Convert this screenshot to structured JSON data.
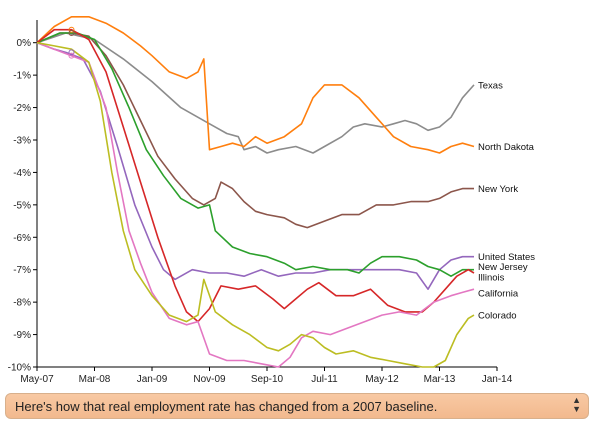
{
  "chart_data": {
    "type": "line",
    "title": "",
    "xlabel": "",
    "ylabel": "",
    "ylim": [
      -10,
      0.7
    ],
    "x_ticks": [
      "May-07",
      "Mar-08",
      "Jan-09",
      "Nov-09",
      "Sep-10",
      "Jul-11",
      "May-12",
      "Mar-13",
      "Jan-14"
    ],
    "y_ticks": [
      {
        "value": 0,
        "label": "0%"
      },
      {
        "value": -1,
        "label": "-1%"
      },
      {
        "value": -2,
        "label": "-2%"
      },
      {
        "value": -3,
        "label": "-3%"
      },
      {
        "value": -4,
        "label": "-4%"
      },
      {
        "value": -5,
        "label": "-5%"
      },
      {
        "value": -6,
        "label": "-6%"
      },
      {
        "value": -7,
        "label": "-7%"
      },
      {
        "value": -8,
        "label": "-8%"
      },
      {
        "value": -9,
        "label": "-9%"
      },
      {
        "value": -10,
        "label": "-10%"
      }
    ],
    "x_note": "x values are months since May-07",
    "series": [
      {
        "name": "Texas",
        "color": "#8c8c8c",
        "points": [
          [
            0,
            0
          ],
          [
            5,
            0.3
          ],
          [
            10,
            0.1
          ],
          [
            15,
            -0.5
          ],
          [
            20,
            -1.2
          ],
          [
            25,
            -2.0
          ],
          [
            30,
            -2.5
          ],
          [
            33,
            -2.8
          ],
          [
            35,
            -2.9
          ],
          [
            36,
            -3.3
          ],
          [
            38,
            -3.2
          ],
          [
            40,
            -3.4
          ],
          [
            42,
            -3.3
          ],
          [
            45,
            -3.2
          ],
          [
            48,
            -3.4
          ],
          [
            50,
            -3.2
          ],
          [
            53,
            -2.9
          ],
          [
            55,
            -2.6
          ],
          [
            57,
            -2.5
          ],
          [
            60,
            -2.6
          ],
          [
            62,
            -2.5
          ],
          [
            64,
            -2.4
          ],
          [
            66,
            -2.5
          ],
          [
            68,
            -2.7
          ],
          [
            70,
            -2.6
          ],
          [
            72,
            -2.3
          ],
          [
            74,
            -1.7
          ],
          [
            76,
            -1.3
          ]
        ]
      },
      {
        "name": "North Dakota",
        "color": "#ff7f0e",
        "points": [
          [
            0,
            0
          ],
          [
            3,
            0.5
          ],
          [
            6,
            0.8
          ],
          [
            9,
            0.8
          ],
          [
            12,
            0.6
          ],
          [
            15,
            0.3
          ],
          [
            18,
            -0.1
          ],
          [
            20,
            -0.4
          ],
          [
            23,
            -0.9
          ],
          [
            26,
            -1.1
          ],
          [
            28,
            -0.9
          ],
          [
            29,
            -0.5
          ],
          [
            30,
            -3.3
          ],
          [
            32,
            -3.2
          ],
          [
            34,
            -3.1
          ],
          [
            36,
            -3.2
          ],
          [
            38,
            -2.9
          ],
          [
            40,
            -3.1
          ],
          [
            43,
            -2.9
          ],
          [
            46,
            -2.5
          ],
          [
            48,
            -1.7
          ],
          [
            50,
            -1.3
          ],
          [
            53,
            -1.3
          ],
          [
            56,
            -1.7
          ],
          [
            59,
            -2.3
          ],
          [
            62,
            -2.9
          ],
          [
            65,
            -3.2
          ],
          [
            68,
            -3.3
          ],
          [
            70,
            -3.4
          ],
          [
            72,
            -3.2
          ],
          [
            74,
            -3.1
          ],
          [
            76,
            -3.2
          ]
        ]
      },
      {
        "name": "New York",
        "color": "#8c564b",
        "points": [
          [
            0,
            0
          ],
          [
            4,
            0.3
          ],
          [
            6,
            0.3
          ],
          [
            9,
            0.2
          ],
          [
            12,
            -0.4
          ],
          [
            15,
            -1.3
          ],
          [
            18,
            -2.4
          ],
          [
            21,
            -3.5
          ],
          [
            24,
            -4.2
          ],
          [
            27,
            -4.8
          ],
          [
            29,
            -5.0
          ],
          [
            31,
            -4.8
          ],
          [
            32,
            -4.3
          ],
          [
            34,
            -4.5
          ],
          [
            36,
            -4.9
          ],
          [
            38,
            -5.2
          ],
          [
            40,
            -5.3
          ],
          [
            43,
            -5.4
          ],
          [
            45,
            -5.6
          ],
          [
            47,
            -5.7
          ],
          [
            50,
            -5.5
          ],
          [
            53,
            -5.3
          ],
          [
            56,
            -5.3
          ],
          [
            59,
            -5.0
          ],
          [
            62,
            -5.0
          ],
          [
            65,
            -4.9
          ],
          [
            68,
            -4.9
          ],
          [
            70,
            -4.8
          ],
          [
            72,
            -4.6
          ],
          [
            74,
            -4.5
          ],
          [
            76,
            -4.5
          ]
        ]
      },
      {
        "name": "United States",
        "color": "#9467bd",
        "points": [
          [
            0,
            0
          ],
          [
            3,
            -0.2
          ],
          [
            5,
            -0.3
          ],
          [
            8,
            -0.5
          ],
          [
            11,
            -1.5
          ],
          [
            14,
            -3.2
          ],
          [
            17,
            -5.0
          ],
          [
            20,
            -6.3
          ],
          [
            22,
            -7.0
          ],
          [
            24,
            -7.3
          ],
          [
            27,
            -7.0
          ],
          [
            30,
            -7.1
          ],
          [
            33,
            -7.1
          ],
          [
            36,
            -7.2
          ],
          [
            39,
            -7.0
          ],
          [
            42,
            -7.2
          ],
          [
            45,
            -7.1
          ],
          [
            48,
            -7.1
          ],
          [
            51,
            -7.0
          ],
          [
            54,
            -7.0
          ],
          [
            57,
            -7.0
          ],
          [
            60,
            -7.0
          ],
          [
            63,
            -7.0
          ],
          [
            66,
            -7.1
          ],
          [
            68,
            -7.6
          ],
          [
            70,
            -7.0
          ],
          [
            72,
            -6.7
          ],
          [
            74,
            -6.6
          ],
          [
            76,
            -6.6
          ]
        ]
      },
      {
        "name": "New Jersey",
        "color": "#2ca02c",
        "points": [
          [
            0,
            0
          ],
          [
            4,
            0.3
          ],
          [
            7,
            0.3
          ],
          [
            10,
            0.1
          ],
          [
            13,
            -0.8
          ],
          [
            16,
            -2.0
          ],
          [
            19,
            -3.3
          ],
          [
            22,
            -4.1
          ],
          [
            25,
            -4.8
          ],
          [
            28,
            -5.1
          ],
          [
            30,
            -5.0
          ],
          [
            31,
            -5.8
          ],
          [
            34,
            -6.3
          ],
          [
            37,
            -6.5
          ],
          [
            40,
            -6.6
          ],
          [
            43,
            -6.8
          ],
          [
            45,
            -7.0
          ],
          [
            48,
            -6.9
          ],
          [
            51,
            -7.0
          ],
          [
            54,
            -7.0
          ],
          [
            56,
            -7.1
          ],
          [
            58,
            -6.8
          ],
          [
            60,
            -6.6
          ],
          [
            63,
            -6.6
          ],
          [
            66,
            -6.7
          ],
          [
            68,
            -6.9
          ],
          [
            70,
            -7.0
          ],
          [
            72,
            -7.2
          ],
          [
            74,
            -7.0
          ],
          [
            76,
            -7.0
          ]
        ]
      },
      {
        "name": "Illinois",
        "color": "#d62728",
        "points": [
          [
            0,
            0
          ],
          [
            3,
            0.4
          ],
          [
            6,
            0.4
          ],
          [
            9,
            0.1
          ],
          [
            12,
            -0.9
          ],
          [
            15,
            -2.6
          ],
          [
            18,
            -4.3
          ],
          [
            21,
            -6.0
          ],
          [
            24,
            -7.5
          ],
          [
            26,
            -8.3
          ],
          [
            28,
            -8.6
          ],
          [
            30,
            -8.2
          ],
          [
            32,
            -7.5
          ],
          [
            35,
            -7.6
          ],
          [
            38,
            -7.5
          ],
          [
            41,
            -7.9
          ],
          [
            43,
            -8.2
          ],
          [
            45,
            -7.9
          ],
          [
            47,
            -7.6
          ],
          [
            49,
            -7.4
          ],
          [
            52,
            -7.8
          ],
          [
            55,
            -7.8
          ],
          [
            58,
            -7.6
          ],
          [
            61,
            -8.1
          ],
          [
            64,
            -8.3
          ],
          [
            67,
            -8.3
          ],
          [
            69,
            -8.0
          ],
          [
            71,
            -7.6
          ],
          [
            73,
            -7.2
          ],
          [
            75,
            -7.0
          ],
          [
            76,
            -7.1
          ]
        ]
      },
      {
        "name": "California",
        "color": "#e377c2",
        "points": [
          [
            0,
            0
          ],
          [
            3,
            -0.2
          ],
          [
            6,
            -0.4
          ],
          [
            9,
            -0.6
          ],
          [
            12,
            -2.0
          ],
          [
            14,
            -4.0
          ],
          [
            16,
            -5.8
          ],
          [
            18,
            -6.8
          ],
          [
            20,
            -7.7
          ],
          [
            23,
            -8.5
          ],
          [
            26,
            -8.7
          ],
          [
            28,
            -8.6
          ],
          [
            30,
            -9.6
          ],
          [
            33,
            -9.8
          ],
          [
            36,
            -9.8
          ],
          [
            39,
            -9.9
          ],
          [
            42,
            -10.0
          ],
          [
            44,
            -9.7
          ],
          [
            46,
            -9.1
          ],
          [
            48,
            -8.9
          ],
          [
            51,
            -9.0
          ],
          [
            54,
            -8.8
          ],
          [
            57,
            -8.6
          ],
          [
            60,
            -8.4
          ],
          [
            63,
            -8.3
          ],
          [
            66,
            -8.4
          ],
          [
            69,
            -8.0
          ],
          [
            72,
            -7.8
          ],
          [
            74,
            -7.7
          ],
          [
            76,
            -7.6
          ]
        ]
      },
      {
        "name": "Colorado",
        "color": "#bcbd22",
        "points": [
          [
            0,
            0
          ],
          [
            3,
            -0.1
          ],
          [
            6,
            -0.2
          ],
          [
            9,
            -0.6
          ],
          [
            11,
            -1.8
          ],
          [
            13,
            -4.0
          ],
          [
            15,
            -5.8
          ],
          [
            17,
            -7.0
          ],
          [
            20,
            -7.8
          ],
          [
            23,
            -8.4
          ],
          [
            26,
            -8.6
          ],
          [
            28,
            -8.4
          ],
          [
            29,
            -7.3
          ],
          [
            31,
            -8.3
          ],
          [
            34,
            -8.7
          ],
          [
            37,
            -9.0
          ],
          [
            40,
            -9.4
          ],
          [
            42,
            -9.5
          ],
          [
            44,
            -9.3
          ],
          [
            46,
            -9.0
          ],
          [
            48,
            -9.1
          ],
          [
            50,
            -9.4
          ],
          [
            52,
            -9.6
          ],
          [
            55,
            -9.5
          ],
          [
            58,
            -9.7
          ],
          [
            61,
            -9.8
          ],
          [
            64,
            -9.9
          ],
          [
            67,
            -10.0
          ],
          [
            69,
            -10.0
          ],
          [
            71,
            -9.8
          ],
          [
            73,
            -9.0
          ],
          [
            75,
            -8.5
          ],
          [
            76,
            -8.4
          ]
        ]
      }
    ]
  },
  "select": {
    "label": "Here's how that real employment rate has changed from a 2007 baseline.",
    "arrow_up": "▲",
    "arrow_down": "▼"
  }
}
